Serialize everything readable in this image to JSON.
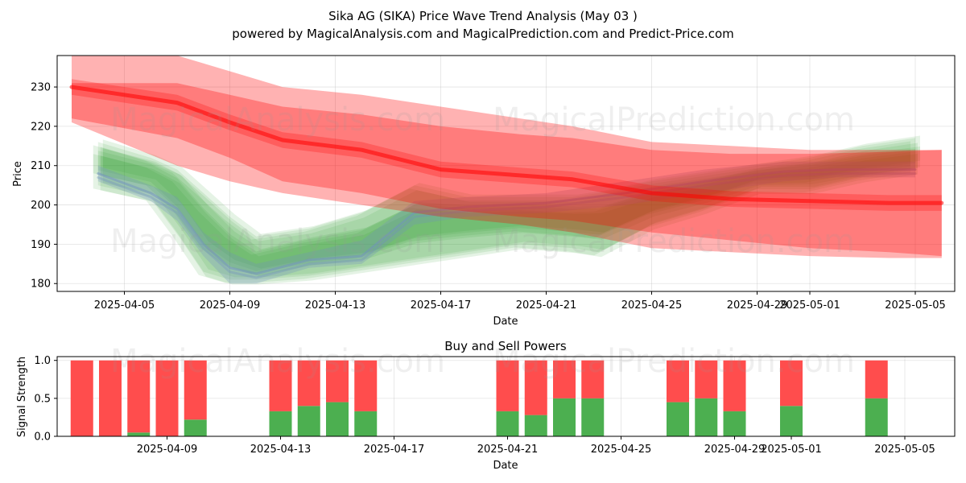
{
  "title": "Sika AG (SIKA) Price Wave Trend Analysis (May 03 )",
  "subtitle": "powered by MagicalAnalysis.com and MagicalPrediction.com and Predict-Price.com",
  "watermarks": [
    "MagicalAnalysis.com",
    "MagicalPrediction.com"
  ],
  "colors": {
    "sell": "#ff4d4d",
    "buy": "#4caf50",
    "band_red": "#ff0000",
    "band_green": "#2ca02c",
    "band_blue": "#7090c0"
  },
  "chart_data": [
    {
      "type": "area",
      "xlabel": "Date",
      "ylabel": "Price",
      "ylim": [
        178,
        238
      ],
      "yticks": [
        180,
        190,
        200,
        210,
        220,
        230
      ],
      "xticks": [
        "2025-04-05",
        "2025-04-09",
        "2025-04-13",
        "2025-04-17",
        "2025-04-21",
        "2025-04-25",
        "2025-04-29",
        "2025-05-01",
        "2025-05-05"
      ],
      "grid": true,
      "red_forecast": {
        "x": [
          "2025-04-03",
          "2025-04-07",
          "2025-04-09",
          "2025-04-11",
          "2025-04-14",
          "2025-04-17",
          "2025-04-20",
          "2025-04-22",
          "2025-04-25",
          "2025-04-28",
          "2025-05-01",
          "2025-05-04",
          "2025-05-06"
        ],
        "mid": [
          230,
          226,
          221,
          216.5,
          214,
          209,
          207.5,
          206.5,
          203,
          201.5,
          201,
          200.5,
          200.5
        ],
        "inner_hi": [
          231,
          231,
          228,
          225,
          223,
          220,
          218,
          217,
          214,
          213,
          213,
          213.5,
          214
        ],
        "inner_lo": [
          222,
          217,
          212,
          206,
          203,
          199,
          197,
          196,
          193,
          191,
          189,
          188,
          187
        ],
        "outer_hi": [
          238,
          238,
          234,
          230,
          228,
          225,
          222,
          220,
          216,
          215,
          214,
          214,
          214
        ],
        "outer_lo": [
          221,
          210,
          206,
          203,
          200,
          197,
          195,
          193,
          189,
          188,
          187,
          186.5,
          186.5
        ]
      },
      "green_waves": {
        "x": [
          "2025-04-04",
          "2025-04-06",
          "2025-04-07",
          "2025-04-08",
          "2025-04-09",
          "2025-04-10",
          "2025-04-12",
          "2025-04-14",
          "2025-04-16",
          "2025-04-18",
          "2025-04-20",
          "2025-04-22",
          "2025-04-23",
          "2025-04-25",
          "2025-04-27",
          "2025-04-29",
          "2025-05-01",
          "2025-05-03",
          "2025-05-05"
        ],
        "mid": [
          212,
          209,
          205,
          196,
          189,
          185,
          189,
          190,
          196,
          197,
          197.5,
          196.5,
          196,
          201,
          204,
          208,
          208.5,
          210.5,
          212
        ],
        "hi": [
          216,
          212,
          209,
          203,
          197,
          192,
          194,
          198,
          205,
          202,
          202,
          202,
          203,
          206,
          208,
          210,
          212,
          215,
          217
        ],
        "lo": [
          205,
          202,
          193,
          183,
          181,
          181,
          182,
          184,
          186,
          188,
          190,
          189,
          188,
          195,
          199,
          204,
          204,
          207,
          209
        ]
      },
      "blue_wave": {
        "x": [
          "2025-04-04",
          "2025-04-06",
          "2025-04-07",
          "2025-04-08",
          "2025-04-09",
          "2025-04-10",
          "2025-04-12",
          "2025-04-14",
          "2025-04-16",
          "2025-04-18",
          "2025-04-21",
          "2025-04-24",
          "2025-04-27",
          "2025-04-30",
          "2025-05-02",
          "2025-05-05"
        ],
        "mid": [
          208,
          203,
          199,
          190,
          184,
          182.5,
          186,
          187,
          198,
          199.5,
          200.5,
          203,
          206,
          208.5,
          209,
          209
        ],
        "hi": [
          210,
          205,
          202,
          193,
          188,
          185,
          188,
          191,
          201,
          202,
          203,
          206,
          209,
          211,
          211,
          211
        ],
        "lo": [
          206,
          201,
          196,
          187,
          180,
          180,
          184,
          185,
          195,
          197,
          198,
          200,
          203,
          206,
          207,
          207
        ]
      }
    },
    {
      "type": "bar",
      "title": "Buy and Sell Powers",
      "xlabel": "Date",
      "ylabel": "Signal Strength",
      "ylim": [
        0,
        1.05
      ],
      "yticks": [
        "0.0",
        "0.5",
        "1.0"
      ],
      "xticks": [
        "2025-04-09",
        "2025-04-13",
        "2025-04-17",
        "2025-04-21",
        "2025-04-25",
        "2025-04-29",
        "2025-05-01",
        "2025-05-05"
      ],
      "categories": [
        "2025-04-06",
        "2025-04-07",
        "2025-04-08",
        "2025-04-09",
        "2025-04-10",
        "2025-04-13",
        "2025-04-14",
        "2025-04-15",
        "2025-04-16",
        "2025-04-21",
        "2025-04-22",
        "2025-04-23",
        "2025-04-24",
        "2025-04-27",
        "2025-04-28",
        "2025-04-29",
        "2025-05-01",
        "2025-05-04"
      ],
      "series": [
        {
          "name": "Buy",
          "values": [
            0,
            0,
            0.05,
            0,
            0.22,
            0.33,
            0.4,
            0.45,
            0.33,
            0.33,
            0.28,
            0.5,
            0.5,
            0.45,
            0.5,
            0.33,
            0.4,
            0.5
          ]
        },
        {
          "name": "Sell",
          "values": [
            1,
            1,
            0.95,
            1,
            0.78,
            0.67,
            0.6,
            0.55,
            0.67,
            0.67,
            0.72,
            0.5,
            0.5,
            0.55,
            0.5,
            0.67,
            0.6,
            0.5
          ]
        }
      ]
    }
  ]
}
